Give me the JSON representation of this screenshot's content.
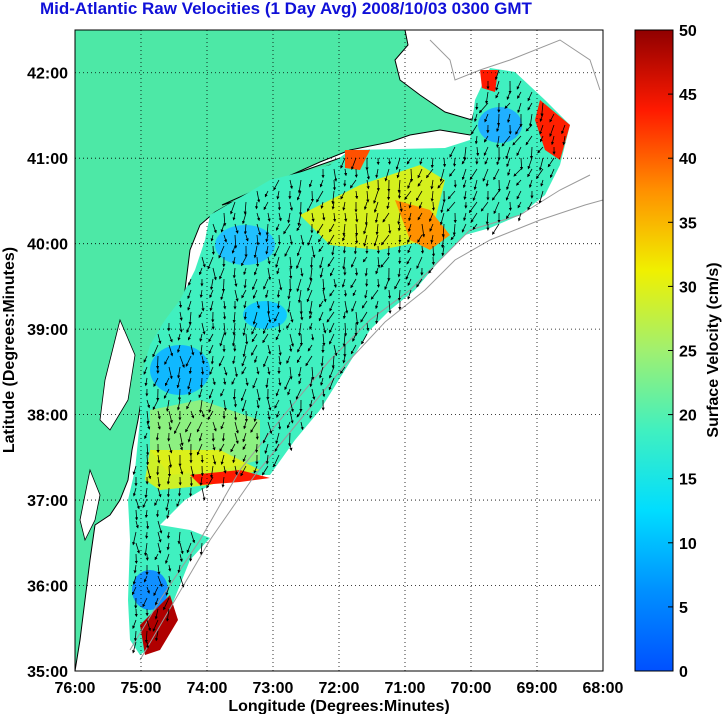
{
  "title": "Mid-Atlantic Raw Velocities (1 Day Avg) 2008/10/03 0300 GMT",
  "x_axis": {
    "label": "Longitude (Degrees:Minutes)",
    "ticks": [
      "76:00",
      "75:00",
      "74:00",
      "73:00",
      "72:00",
      "71:00",
      "70:00",
      "69:00",
      "68:00"
    ]
  },
  "y_axis": {
    "label": "Latitude (Degrees:Minutes)",
    "ticks": [
      "35:00",
      "36:00",
      "37:00",
      "38:00",
      "39:00",
      "40:00",
      "41:00",
      "42:00"
    ]
  },
  "colorbar": {
    "label": "Surface Velocity (cm/s)",
    "ticks": [
      "0",
      "5",
      "10",
      "15",
      "20",
      "25",
      "30",
      "35",
      "40",
      "45",
      "50"
    ],
    "range": [
      0,
      50
    ]
  },
  "colors": {
    "land": "#4de8a6",
    "ocean": "#ffffff",
    "coast_line": "#000000",
    "bathymetry": "#9a9a9a",
    "grid": "#000000"
  },
  "map": {
    "lon_range": [
      -76,
      -68
    ],
    "lat_range": [
      35,
      42.5
    ],
    "grid": "dotted"
  }
}
